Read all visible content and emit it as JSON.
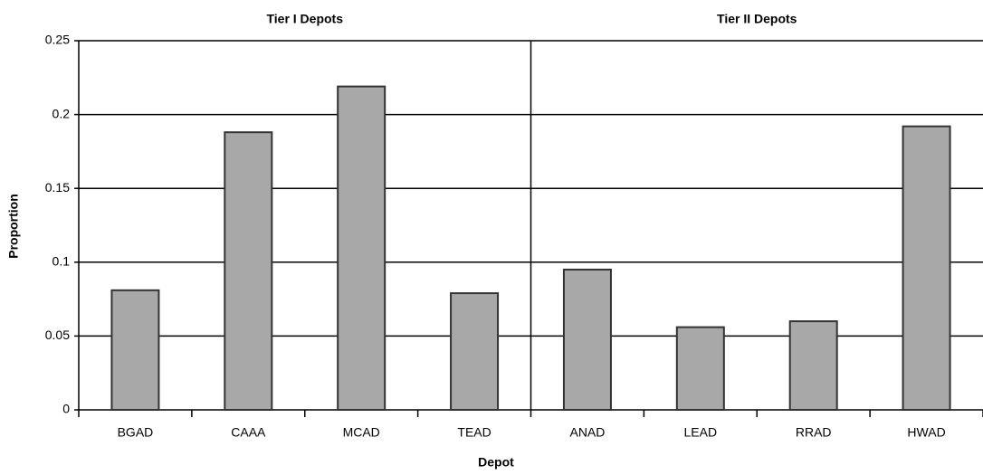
{
  "chart_data": {
    "type": "bar",
    "annotations": [
      "Tier I Depots",
      "Tier II Depots"
    ],
    "x_label": "Depot",
    "y_label": "Proportion",
    "categories": [
      "BGAD",
      "CAAA",
      "MCAD",
      "TEAD",
      "ANAD",
      "LEAD",
      "RRAD",
      "HWAD"
    ],
    "values": [
      0.081,
      0.188,
      0.219,
      0.079,
      0.095,
      0.056,
      0.06,
      0.192
    ],
    "color": "#a8a8a8",
    "ylim": [
      0,
      0.25
    ],
    "yticks": [
      0,
      0.05,
      0.1,
      0.15,
      0.2,
      0.25
    ],
    "grid": true
  }
}
